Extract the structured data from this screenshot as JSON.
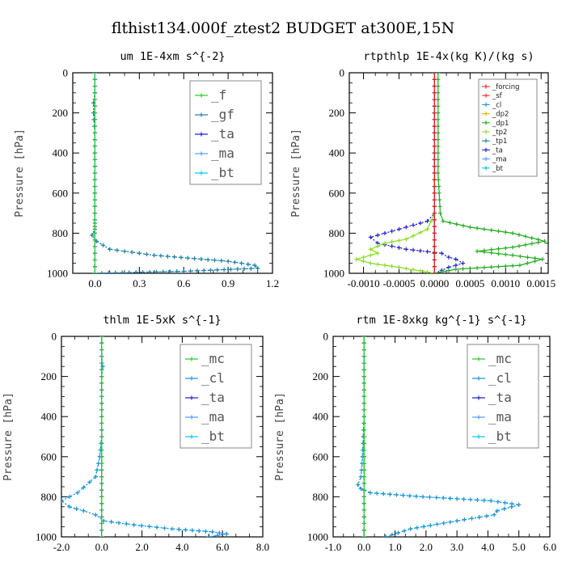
{
  "title": "flthist134.000f_ztest2  BUDGET at300E,15N",
  "colors": {
    "_f": "#22cc22",
    "_gf": "#2a7aa0",
    "_ta": "#1a1acc",
    "_ma": "#4aa0ff",
    "_bt": "#00c8e8",
    "_mc": "#22cc22",
    "_cl": "#1e90d8",
    "_forcing": "#dd2222",
    "_sf": "#ff3030",
    "_dp2": "#f0b000",
    "_dp1": "#22aa22",
    "_tp2": "#88dd22",
    "_tp1": "#208a8a"
  },
  "chart_data": [
    {
      "type": "line",
      "title": "um  1E-4xm s^{-2}",
      "ylabel": "Pressure [hPa]",
      "xlim": [
        -0.15,
        1.2
      ],
      "ylim": [
        0,
        1000
      ],
      "y_inverted": true,
      "xticks": [
        0.0,
        0.3,
        0.6,
        0.9,
        1.2
      ],
      "xtick_labels": [
        "0.0",
        "0.3",
        "0.6",
        "0.9",
        "1.2"
      ],
      "yticks": [
        0,
        200,
        400,
        600,
        800,
        1000
      ],
      "ytick_labels": [
        "0",
        "200",
        "400",
        "600",
        "800",
        "1000"
      ],
      "legend": {
        "position": "top-right",
        "entries": [
          "_f",
          "_gf",
          "_ta",
          "_ma",
          "_bt"
        ]
      },
      "series": [
        {
          "name": "_f",
          "style": "solid",
          "x": [
            0,
            0,
            0,
            0,
            0,
            0,
            0,
            0,
            0,
            0,
            0
          ],
          "y": [
            0,
            100,
            200,
            300,
            400,
            500,
            600,
            700,
            800,
            900,
            1000
          ]
        },
        {
          "name": "_gf",
          "style": "dotted",
          "x": [
            0.0,
            0.0,
            -0.01,
            -0.01,
            0.0,
            0.0,
            0.0,
            0.0,
            0.0,
            0.0,
            0.0,
            -0.02,
            0.01,
            0.1,
            0.4,
            0.9,
            1.08,
            1.1,
            0.6,
            0.0
          ],
          "y": [
            0,
            100,
            150,
            200,
            300,
            400,
            500,
            600,
            700,
            750,
            780,
            810,
            840,
            880,
            910,
            940,
            960,
            975,
            990,
            1000
          ]
        },
        {
          "name": "_ta",
          "style": "dotted",
          "x": [
            0,
            0,
            0,
            0,
            0,
            0,
            0
          ],
          "y": [
            0,
            200,
            400,
            600,
            800,
            900,
            1000
          ]
        },
        {
          "name": "_ma",
          "style": "dotted",
          "x": [
            0,
            0,
            0,
            0,
            0,
            0,
            0
          ],
          "y": [
            0,
            200,
            400,
            600,
            800,
            900,
            1000
          ]
        },
        {
          "name": "_bt",
          "style": "dotted",
          "x": [
            0.0,
            0.0,
            -0.01,
            -0.01,
            0.0,
            0.0,
            0.0,
            0.0,
            0.0,
            0.0,
            0.0,
            -0.02,
            0.01,
            0.1,
            0.4,
            0.9,
            1.08,
            1.1,
            0.6,
            0.0
          ],
          "y": [
            0,
            100,
            150,
            200,
            300,
            400,
            500,
            600,
            700,
            750,
            780,
            810,
            840,
            880,
            910,
            940,
            960,
            975,
            990,
            1000
          ]
        }
      ]
    },
    {
      "type": "line",
      "title": "rtpthlp  1E-4x(kg K)/(kg s)",
      "ylabel": "Pressure [hPa]",
      "xlim": [
        -0.0012,
        0.0016
      ],
      "ylim": [
        0,
        1000
      ],
      "y_inverted": true,
      "xticks": [
        -0.001,
        -0.0005,
        0.0,
        0.0005,
        0.001,
        0.0015
      ],
      "xtick_labels": [
        "-0.0010",
        "-0.0005",
        "0.0000",
        "0.0005",
        "0.0010",
        "0.0015"
      ],
      "yticks": [
        0,
        200,
        400,
        600,
        800,
        1000
      ],
      "ytick_labels": [
        "0",
        "200",
        "400",
        "600",
        "800",
        "1000"
      ],
      "legend": {
        "position": "top-right",
        "entries": [
          "_forcing",
          "_sf",
          "_cl",
          "_dp2",
          "_dp1",
          "_tp2",
          "_tp1",
          "_ta",
          "_ma",
          "_bt"
        ]
      },
      "series": [
        {
          "name": "_forcing",
          "style": "solid",
          "x": [
            0,
            0,
            0,
            0,
            0,
            0
          ],
          "y": [
            0,
            200,
            400,
            600,
            800,
            1000
          ]
        },
        {
          "name": "_sf",
          "style": "solid",
          "x": [
            0,
            0,
            0,
            0,
            0,
            0
          ],
          "y": [
            0,
            200,
            400,
            600,
            800,
            1000
          ]
        },
        {
          "name": "_cl",
          "style": "solid",
          "x": [
            0,
            0,
            0,
            0,
            0,
            0
          ],
          "y": [
            0,
            200,
            400,
            600,
            800,
            1000
          ]
        },
        {
          "name": "_dp2",
          "style": "solid",
          "x": [
            0,
            0,
            0,
            0,
            0,
            0
          ],
          "y": [
            0,
            200,
            400,
            600,
            800,
            1000
          ]
        },
        {
          "name": "_dp1",
          "style": "solid",
          "x": [
            5e-05,
            5e-05,
            5e-05,
            8e-05,
            0.00012,
            0.0005,
            0.0011,
            0.00155,
            0.0011,
            0.0006,
            0.0011,
            0.00152,
            0.0012,
            0.0003,
            0.0
          ],
          "y": [
            0,
            200,
            500,
            700,
            740,
            770,
            800,
            840,
            870,
            890,
            910,
            930,
            960,
            980,
            1000
          ]
        },
        {
          "name": "_tp2",
          "style": "solid",
          "x": [
            0.0,
            0.0,
            -0.0001,
            -0.0004,
            -0.0007,
            -0.0009,
            -0.0008,
            -0.0011,
            -0.0009,
            -0.0005,
            0.0
          ],
          "y": [
            0,
            700,
            780,
            830,
            850,
            880,
            900,
            930,
            950,
            970,
            1000
          ]
        },
        {
          "name": "_tp1",
          "style": "solid",
          "x": [
            0,
            0,
            0,
            0,
            0,
            0
          ],
          "y": [
            0,
            200,
            400,
            600,
            800,
            1000
          ]
        },
        {
          "name": "_ta",
          "style": "dotted",
          "x": [
            0.0,
            0.0,
            -0.0001,
            -0.0003,
            -0.0006,
            -0.0009,
            -0.0008,
            -0.0004,
            0.0001,
            0.0002,
            0.0003,
            0.0004,
            0.0002,
            0.0
          ],
          "y": [
            0,
            700,
            740,
            760,
            790,
            820,
            850,
            880,
            900,
            920,
            930,
            950,
            970,
            1000
          ]
        },
        {
          "name": "_ma",
          "style": "dotted",
          "x": [
            0,
            0,
            0,
            0,
            0,
            0
          ],
          "y": [
            0,
            200,
            400,
            600,
            800,
            1000
          ]
        },
        {
          "name": "_bt",
          "style": "dotted",
          "x": [
            0,
            0,
            0,
            0,
            0,
            0
          ],
          "y": [
            0,
            200,
            400,
            600,
            800,
            1000
          ]
        }
      ]
    },
    {
      "type": "line",
      "title": "thlm  1E-5xK s^{-1}",
      "ylabel": "Pressure [hPa]",
      "xlim": [
        -2.0,
        8.0
      ],
      "ylim": [
        0,
        1000
      ],
      "y_inverted": true,
      "xticks": [
        -2.0,
        0.0,
        2.0,
        4.0,
        6.0,
        8.0
      ],
      "xtick_labels": [
        "-2.0",
        "0.0",
        "2.0",
        "4.0",
        "6.0",
        "8.0"
      ],
      "yticks": [
        0,
        200,
        400,
        600,
        800,
        1000
      ],
      "ytick_labels": [
        "0",
        "200",
        "400",
        "600",
        "800",
        "1000"
      ],
      "legend": {
        "position": "top-right",
        "entries": [
          "_mc",
          "_cl",
          "_ta",
          "_ma",
          "_bt"
        ]
      },
      "series": [
        {
          "name": "_mc",
          "style": "solid",
          "x": [
            0,
            0,
            0,
            0,
            0,
            0,
            0,
            0,
            0,
            0,
            0
          ],
          "y": [
            0,
            100,
            200,
            300,
            400,
            500,
            600,
            700,
            800,
            900,
            1000
          ]
        },
        {
          "name": "_cl",
          "style": "dotted",
          "x": [
            0.0,
            0.0,
            0.05,
            0.0,
            0.0,
            0.0,
            0.0,
            -0.1,
            -0.3,
            -1.2,
            -2.0,
            -1.6,
            -0.9,
            -0.3,
            0.1,
            1.6,
            3.5,
            5.5,
            6.2,
            5.3
          ],
          "y": [
            0,
            100,
            150,
            200,
            300,
            400,
            500,
            600,
            700,
            780,
            820,
            850,
            870,
            890,
            920,
            940,
            960,
            975,
            985,
            1000
          ]
        },
        {
          "name": "_ta",
          "style": "dotted",
          "x": [
            0,
            0,
            0,
            0,
            0,
            0,
            0
          ],
          "y": [
            0,
            200,
            400,
            600,
            800,
            900,
            1000
          ]
        },
        {
          "name": "_ma",
          "style": "dotted",
          "x": [
            0,
            0,
            0,
            0,
            0,
            0,
            0
          ],
          "y": [
            0,
            200,
            400,
            600,
            800,
            900,
            1000
          ]
        },
        {
          "name": "_bt",
          "style": "dotted",
          "x": [
            0.0,
            0.0,
            0.05,
            0.0,
            0.0,
            0.0,
            0.0,
            -0.1,
            -0.3,
            -1.2,
            -2.0,
            -1.6,
            -0.9,
            -0.3,
            0.1,
            1.6,
            3.5,
            5.5,
            6.2,
            5.3
          ],
          "y": [
            0,
            100,
            150,
            200,
            300,
            400,
            500,
            600,
            700,
            780,
            820,
            850,
            870,
            890,
            920,
            940,
            960,
            975,
            985,
            1000
          ]
        }
      ]
    },
    {
      "type": "line",
      "title": "rtm  1E-8xkg kg^{-1} s^{-1}",
      "ylabel": "Pressure [hPa]",
      "xlim": [
        -1.0,
        6.0
      ],
      "ylim": [
        0,
        1000
      ],
      "y_inverted": true,
      "xticks": [
        -1.0,
        0.0,
        1.0,
        2.0,
        3.0,
        4.0,
        5.0,
        6.0
      ],
      "xtick_labels": [
        "-1.0",
        "0.0",
        "1.0",
        "2.0",
        "3.0",
        "4.0",
        "5.0",
        "6.0"
      ],
      "yticks": [
        0,
        200,
        400,
        600,
        800,
        1000
      ],
      "ytick_labels": [
        "0",
        "200",
        "400",
        "600",
        "800",
        "1000"
      ],
      "legend": {
        "position": "top-right",
        "entries": [
          "_mc",
          "_cl",
          "_ta",
          "_ma",
          "_bt"
        ]
      },
      "series": [
        {
          "name": "_mc",
          "style": "solid",
          "x": [
            0,
            0,
            0,
            0,
            0,
            0,
            0,
            0,
            0,
            0,
            0
          ],
          "y": [
            0,
            100,
            200,
            300,
            400,
            500,
            600,
            700,
            800,
            900,
            1000
          ]
        },
        {
          "name": "_cl",
          "style": "dotted",
          "x": [
            0.0,
            0.0,
            0.0,
            -0.05,
            -0.1,
            -0.2,
            -0.1,
            0.2,
            1.9,
            4.1,
            5.0,
            4.3,
            4.2,
            3.0,
            1.5,
            0.7
          ],
          "y": [
            0,
            200,
            400,
            600,
            700,
            740,
            760,
            780,
            800,
            820,
            840,
            870,
            890,
            920,
            960,
            1000
          ]
        },
        {
          "name": "_ta",
          "style": "dotted",
          "x": [
            0,
            0,
            0,
            0,
            0,
            0,
            0
          ],
          "y": [
            0,
            200,
            400,
            600,
            800,
            900,
            1000
          ]
        },
        {
          "name": "_ma",
          "style": "dotted",
          "x": [
            0,
            0,
            0,
            0,
            0,
            0,
            0
          ],
          "y": [
            0,
            200,
            400,
            600,
            800,
            900,
            1000
          ]
        },
        {
          "name": "_bt",
          "style": "dotted",
          "x": [
            0.0,
            0.0,
            0.0,
            -0.05,
            -0.1,
            -0.2,
            -0.1,
            0.2,
            1.9,
            4.1,
            5.0,
            4.3,
            4.2,
            3.0,
            1.5,
            0.7
          ],
          "y": [
            0,
            200,
            400,
            600,
            700,
            740,
            760,
            780,
            800,
            820,
            840,
            870,
            890,
            920,
            960,
            1000
          ]
        }
      ]
    }
  ]
}
